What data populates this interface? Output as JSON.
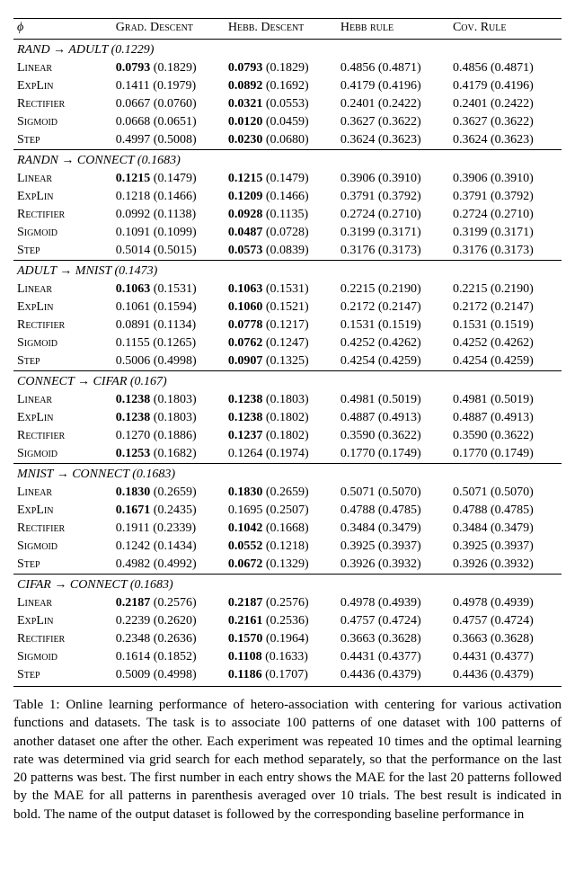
{
  "header": {
    "phi": "ϕ",
    "cols": [
      "Grad. Descent",
      "Hebb. Descent",
      "Hebb rule",
      "Cov. Rule"
    ]
  },
  "sections": [
    {
      "title": "RAND → ADULT (0.1229)",
      "rows": [
        {
          "phi": "Linear",
          "cells": [
            {
              "v": "0.0793",
              "p": "(0.1829)",
              "b": true
            },
            {
              "v": "0.0793",
              "p": "(0.1829)",
              "b": true
            },
            {
              "v": "0.4856",
              "p": "(0.4871)",
              "b": false
            },
            {
              "v": "0.4856",
              "p": "(0.4871)",
              "b": false
            }
          ]
        },
        {
          "phi": "ExpLin",
          "cells": [
            {
              "v": "0.1411",
              "p": "(0.1979)",
              "b": false
            },
            {
              "v": "0.0892",
              "p": "(0.1692)",
              "b": true
            },
            {
              "v": "0.4179",
              "p": "(0.4196)",
              "b": false
            },
            {
              "v": "0.4179",
              "p": "(0.4196)",
              "b": false
            }
          ]
        },
        {
          "phi": "Rectifier",
          "cells": [
            {
              "v": "0.0667",
              "p": "(0.0760)",
              "b": false
            },
            {
              "v": "0.0321",
              "p": "(0.0553)",
              "b": true
            },
            {
              "v": "0.2401",
              "p": "(0.2422)",
              "b": false
            },
            {
              "v": "0.2401",
              "p": "(0.2422)",
              "b": false
            }
          ]
        },
        {
          "phi": "Sigmoid",
          "cells": [
            {
              "v": "0.0668",
              "p": "(0.0651)",
              "b": false
            },
            {
              "v": "0.0120",
              "p": "(0.0459)",
              "b": true
            },
            {
              "v": "0.3627",
              "p": "(0.3622)",
              "b": false
            },
            {
              "v": "0.3627",
              "p": "(0.3622)",
              "b": false
            }
          ]
        },
        {
          "phi": "Step",
          "cells": [
            {
              "v": "0.4997",
              "p": "(0.5008)",
              "b": false
            },
            {
              "v": "0.0230",
              "p": "(0.0680)",
              "b": true
            },
            {
              "v": "0.3624",
              "p": "(0.3623)",
              "b": false
            },
            {
              "v": "0.3624",
              "p": "(0.3623)",
              "b": false
            }
          ]
        }
      ]
    },
    {
      "title": "RANDN → CONNECT (0.1683)",
      "rows": [
        {
          "phi": "Linear",
          "cells": [
            {
              "v": "0.1215",
              "p": "(0.1479)",
              "b": true
            },
            {
              "v": "0.1215",
              "p": "(0.1479)",
              "b": true
            },
            {
              "v": "0.3906",
              "p": "(0.3910)",
              "b": false
            },
            {
              "v": "0.3906",
              "p": "(0.3910)",
              "b": false
            }
          ]
        },
        {
          "phi": "ExpLin",
          "cells": [
            {
              "v": "0.1218",
              "p": "(0.1466)",
              "b": false
            },
            {
              "v": "0.1209",
              "p": "(0.1466)",
              "b": true
            },
            {
              "v": "0.3791",
              "p": "(0.3792)",
              "b": false
            },
            {
              "v": "0.3791",
              "p": "(0.3792)",
              "b": false
            }
          ]
        },
        {
          "phi": "Rectifier",
          "cells": [
            {
              "v": "0.0992",
              "p": "(0.1138)",
              "b": false
            },
            {
              "v": "0.0928",
              "p": "(0.1135)",
              "b": true
            },
            {
              "v": "0.2724",
              "p": "(0.2710)",
              "b": false
            },
            {
              "v": "0.2724",
              "p": "(0.2710)",
              "b": false
            }
          ]
        },
        {
          "phi": "Sigmoid",
          "cells": [
            {
              "v": "0.1091",
              "p": "(0.1099)",
              "b": false
            },
            {
              "v": "0.0487",
              "p": "(0.0728)",
              "b": true
            },
            {
              "v": "0.3199",
              "p": "(0.3171)",
              "b": false
            },
            {
              "v": "0.3199",
              "p": "(0.3171)",
              "b": false
            }
          ]
        },
        {
          "phi": "Step",
          "cells": [
            {
              "v": "0.5014",
              "p": "(0.5015)",
              "b": false
            },
            {
              "v": "0.0573",
              "p": "(0.0839)",
              "b": true
            },
            {
              "v": "0.3176",
              "p": "(0.3173)",
              "b": false
            },
            {
              "v": "0.3176",
              "p": "(0.3173)",
              "b": false
            }
          ]
        }
      ]
    },
    {
      "title": "ADULT → MNIST (0.1473)",
      "rows": [
        {
          "phi": "Linear",
          "cells": [
            {
              "v": "0.1063",
              "p": "(0.1531)",
              "b": true
            },
            {
              "v": "0.1063",
              "p": "(0.1531)",
              "b": true
            },
            {
              "v": "0.2215",
              "p": "(0.2190)",
              "b": false
            },
            {
              "v": "0.2215",
              "p": "(0.2190)",
              "b": false
            }
          ]
        },
        {
          "phi": "ExpLin",
          "cells": [
            {
              "v": "0.1061",
              "p": "(0.1594)",
              "b": false
            },
            {
              "v": "0.1060",
              "p": "(0.1521)",
              "b": true
            },
            {
              "v": "0.2172",
              "p": "(0.2147)",
              "b": false
            },
            {
              "v": "0.2172",
              "p": "(0.2147)",
              "b": false
            }
          ]
        },
        {
          "phi": "Rectifier",
          "cells": [
            {
              "v": "0.0891",
              "p": "(0.1134)",
              "b": false
            },
            {
              "v": "0.0778",
              "p": "(0.1217)",
              "b": true
            },
            {
              "v": "0.1531",
              "p": "(0.1519)",
              "b": false
            },
            {
              "v": "0.1531",
              "p": "(0.1519)",
              "b": false
            }
          ]
        },
        {
          "phi": "Sigmoid",
          "cells": [
            {
              "v": "0.1155",
              "p": "(0.1265)",
              "b": false
            },
            {
              "v": "0.0762",
              "p": "(0.1247)",
              "b": true
            },
            {
              "v": "0.4252",
              "p": "(0.4262)",
              "b": false
            },
            {
              "v": "0.4252",
              "p": "(0.4262)",
              "b": false
            }
          ]
        },
        {
          "phi": "Step",
          "cells": [
            {
              "v": "0.5006",
              "p": "(0.4998)",
              "b": false
            },
            {
              "v": "0.0907",
              "p": "(0.1325)",
              "b": true
            },
            {
              "v": "0.4254",
              "p": "(0.4259)",
              "b": false
            },
            {
              "v": "0.4254",
              "p": "(0.4259)",
              "b": false
            }
          ]
        }
      ]
    },
    {
      "title": "CONNECT → CIFAR (0.167)",
      "rows": [
        {
          "phi": "Linear",
          "cells": [
            {
              "v": "0.1238",
              "p": "(0.1803)",
              "b": true
            },
            {
              "v": "0.1238",
              "p": "(0.1803)",
              "b": true
            },
            {
              "v": "0.4981",
              "p": "(0.5019)",
              "b": false
            },
            {
              "v": "0.4981",
              "p": "(0.5019)",
              "b": false
            }
          ]
        },
        {
          "phi": "ExpLin",
          "cells": [
            {
              "v": "0.1238",
              "p": "(0.1803)",
              "b": true
            },
            {
              "v": "0.1238",
              "p": "(0.1802)",
              "b": true
            },
            {
              "v": "0.4887",
              "p": "(0.4913)",
              "b": false
            },
            {
              "v": "0.4887",
              "p": "(0.4913)",
              "b": false
            }
          ]
        },
        {
          "phi": "Rectifier",
          "cells": [
            {
              "v": "0.1270",
              "p": "(0.1886)",
              "b": false
            },
            {
              "v": "0.1237",
              "p": "(0.1802)",
              "b": true
            },
            {
              "v": "0.3590",
              "p": "(0.3622)",
              "b": false
            },
            {
              "v": "0.3590",
              "p": "(0.3622)",
              "b": false
            }
          ]
        },
        {
          "phi": "Sigmoid",
          "cells": [
            {
              "v": "0.1253",
              "p": "(0.1682)",
              "b": true
            },
            {
              "v": "0.1264",
              "p": "(0.1974)",
              "b": false
            },
            {
              "v": "0.1770",
              "p": "(0.1749)",
              "b": false
            },
            {
              "v": "0.1770",
              "p": "(0.1749)",
              "b": false
            }
          ]
        }
      ]
    },
    {
      "title": "MNIST → CONNECT (0.1683)",
      "rows": [
        {
          "phi": "Linear",
          "cells": [
            {
              "v": "0.1830",
              "p": "(0.2659)",
              "b": true
            },
            {
              "v": "0.1830",
              "p": "(0.2659)",
              "b": true
            },
            {
              "v": "0.5071",
              "p": "(0.5070)",
              "b": false
            },
            {
              "v": "0.5071",
              "p": "(0.5070)",
              "b": false
            }
          ]
        },
        {
          "phi": "ExpLin",
          "cells": [
            {
              "v": "0.1671",
              "p": "(0.2435)",
              "b": true
            },
            {
              "v": "0.1695",
              "p": "(0.2507)",
              "b": false
            },
            {
              "v": "0.4788",
              "p": "(0.4785)",
              "b": false
            },
            {
              "v": "0.4788",
              "p": "(0.4785)",
              "b": false
            }
          ]
        },
        {
          "phi": "Rectifier",
          "cells": [
            {
              "v": "0.1911",
              "p": "(0.2339)",
              "b": false
            },
            {
              "v": "0.1042",
              "p": "(0.1668)",
              "b": true
            },
            {
              "v": "0.3484",
              "p": "(0.3479)",
              "b": false
            },
            {
              "v": "0.3484",
              "p": "(0.3479)",
              "b": false
            }
          ]
        },
        {
          "phi": "Sigmoid",
          "cells": [
            {
              "v": "0.1242",
              "p": "(0.1434)",
              "b": false
            },
            {
              "v": "0.0552",
              "p": "(0.1218)",
              "b": true
            },
            {
              "v": "0.3925",
              "p": "(0.3937)",
              "b": false
            },
            {
              "v": "0.3925",
              "p": "(0.3937)",
              "b": false
            }
          ]
        },
        {
          "phi": "Step",
          "cells": [
            {
              "v": "0.4982",
              "p": "(0.4992)",
              "b": false
            },
            {
              "v": "0.0672",
              "p": "(0.1329)",
              "b": true
            },
            {
              "v": "0.3926",
              "p": "(0.3932)",
              "b": false
            },
            {
              "v": "0.3926",
              "p": "(0.3932)",
              "b": false
            }
          ]
        }
      ]
    },
    {
      "title": "CIFAR → CONNECT (0.1683)",
      "rows": [
        {
          "phi": "Linear",
          "cells": [
            {
              "v": "0.2187",
              "p": "(0.2576)",
              "b": true
            },
            {
              "v": "0.2187",
              "p": "(0.2576)",
              "b": true
            },
            {
              "v": "0.4978",
              "p": "(0.4939)",
              "b": false
            },
            {
              "v": "0.4978",
              "p": "(0.4939)",
              "b": false
            }
          ]
        },
        {
          "phi": "ExpLin",
          "cells": [
            {
              "v": "0.2239",
              "p": "(0.2620)",
              "b": false
            },
            {
              "v": "0.2161",
              "p": "(0.2536)",
              "b": true
            },
            {
              "v": "0.4757",
              "p": "(0.4724)",
              "b": false
            },
            {
              "v": "0.4757",
              "p": "(0.4724)",
              "b": false
            }
          ]
        },
        {
          "phi": "Rectifier",
          "cells": [
            {
              "v": "0.2348",
              "p": "(0.2636)",
              "b": false
            },
            {
              "v": "0.1570",
              "p": "(0.1964)",
              "b": true
            },
            {
              "v": "0.3663",
              "p": "(0.3628)",
              "b": false
            },
            {
              "v": "0.3663",
              "p": "(0.3628)",
              "b": false
            }
          ]
        },
        {
          "phi": "Sigmoid",
          "cells": [
            {
              "v": "0.1614",
              "p": "(0.1852)",
              "b": false
            },
            {
              "v": "0.1108",
              "p": "(0.1633)",
              "b": true
            },
            {
              "v": "0.4431",
              "p": "(0.4377)",
              "b": false
            },
            {
              "v": "0.4431",
              "p": "(0.4377)",
              "b": false
            }
          ]
        },
        {
          "phi": "Step",
          "cells": [
            {
              "v": "0.5009",
              "p": "(0.4998)",
              "b": false
            },
            {
              "v": "0.1186",
              "p": "(0.1707)",
              "b": true
            },
            {
              "v": "0.4436",
              "p": "(0.4379)",
              "b": false
            },
            {
              "v": "0.4436",
              "p": "(0.4379)",
              "b": false
            }
          ]
        }
      ]
    }
  ],
  "caption": "Table 1: Online learning performance of hetero-association with centering for various activation functions and datasets. The task is to associate 100 patterns of one dataset with 100 patterns of another dataset one after the other. Each experiment was repeated 10 times and the optimal learning rate was determined via grid search for each method separately, so that the performance on the last 20 patterns was best. The first number in each entry shows the MAE for the last 20 patterns followed by the MAE for all patterns in parenthesis averaged over 10 trials. The best result is indicated in bold. The name of the output dataset is followed by the corresponding baseline performance in"
}
